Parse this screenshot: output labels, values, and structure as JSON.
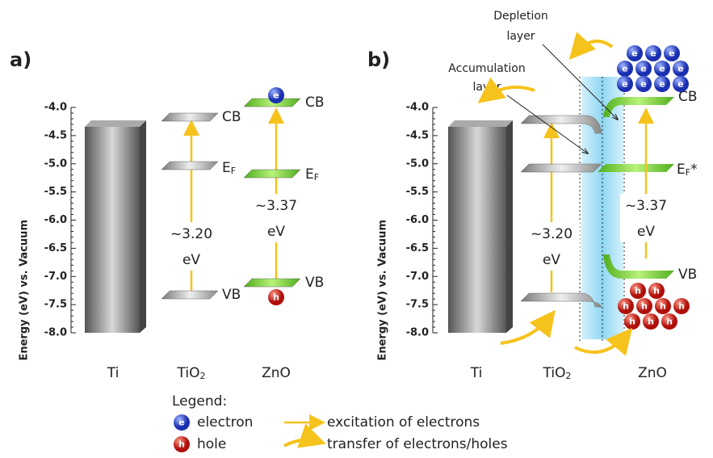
{
  "panel_a": {
    "label": "a)",
    "y_axis_title": "Energy (eV) vs. Vacuum",
    "yticks": [
      "-4.0",
      "-4.5",
      "-5.0",
      "-5.5",
      "-6.0",
      "-6.5",
      "-7.0",
      "-7.5",
      "-8.0"
    ],
    "materials": [
      "Ti",
      {
        "main": "TiO",
        "sub": "2"
      },
      "ZnO"
    ],
    "tio2": {
      "cb": "CB",
      "ef": {
        "main": "E",
        "sub": "F"
      },
      "vb": "VB",
      "gap": "~3.20",
      "gap_unit": "eV"
    },
    "zno": {
      "cb": "CB",
      "ef": {
        "main": "E",
        "sub": "F"
      },
      "vb": "VB",
      "gap": "~3.37",
      "gap_unit": "eV"
    }
  },
  "panel_b": {
    "label": "b)",
    "y_axis_title": "Energy (eV) vs. Vacuum",
    "yticks": [
      "-4.0",
      "-4.5",
      "-5.0",
      "-5.5",
      "-6.0",
      "-6.5",
      "-7.0",
      "-7.5",
      "-8.0"
    ],
    "materials": [
      "Ti",
      {
        "main": "TiO",
        "sub": "2"
      },
      "ZnO"
    ],
    "tio2": {
      "gap": "~3.20",
      "gap_unit": "eV"
    },
    "zno": {
      "cb": "CB",
      "ef": {
        "main": "E",
        "sub": "F",
        "suffix": "*"
      },
      "vb": "VB",
      "gap": "~3.37",
      "gap_unit": "eV"
    },
    "depletion": [
      "Depletion",
      "layer"
    ],
    "accumulation": [
      "Accumulation",
      "layer"
    ]
  },
  "legend": {
    "title": "Legend:",
    "electron_symbol": "e",
    "electron": "electron",
    "hole_symbol": "h",
    "hole": "hole",
    "excitation": "excitation of electrons",
    "transfer": "transfer of electrons/holes"
  }
}
